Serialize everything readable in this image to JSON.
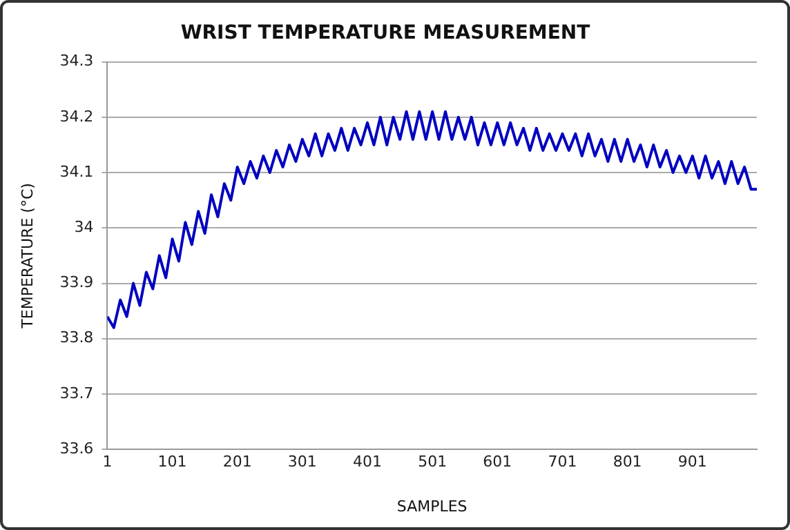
{
  "chart_data": {
    "type": "line",
    "title": "WRIST TEMPERATURE MEASUREMENT",
    "xlabel": "SAMPLES",
    "ylabel": "TEMPERATURE (°C)",
    "x": [
      1,
      11,
      21,
      31,
      41,
      51,
      61,
      71,
      81,
      91,
      101,
      111,
      121,
      131,
      141,
      151,
      161,
      171,
      181,
      191,
      201,
      211,
      221,
      231,
      241,
      251,
      261,
      271,
      281,
      291,
      301,
      311,
      321,
      331,
      341,
      351,
      361,
      371,
      381,
      391,
      401,
      411,
      421,
      431,
      441,
      451,
      461,
      471,
      481,
      491,
      501,
      511,
      521,
      531,
      541,
      551,
      561,
      571,
      581,
      591,
      601,
      611,
      621,
      631,
      641,
      651,
      661,
      671,
      681,
      691,
      701,
      711,
      721,
      731,
      741,
      751,
      761,
      771,
      781,
      791,
      801,
      811,
      821,
      831,
      841,
      851,
      861,
      871,
      881,
      891,
      901,
      911,
      921,
      931,
      941,
      951,
      961,
      971,
      981,
      991,
      1000
    ],
    "series": [
      {
        "color": "#0000c0",
        "values": [
          33.84,
          33.82,
          33.87,
          33.84,
          33.9,
          33.86,
          33.92,
          33.89,
          33.95,
          33.91,
          33.98,
          33.94,
          34.01,
          33.97,
          34.03,
          33.99,
          34.06,
          34.02,
          34.08,
          34.05,
          34.11,
          34.08,
          34.12,
          34.09,
          34.13,
          34.1,
          34.14,
          34.11,
          34.15,
          34.12,
          34.16,
          34.13,
          34.17,
          34.13,
          34.17,
          34.14,
          34.18,
          34.14,
          34.18,
          34.15,
          34.19,
          34.15,
          34.2,
          34.15,
          34.2,
          34.16,
          34.21,
          34.16,
          34.21,
          34.16,
          34.21,
          34.16,
          34.21,
          34.16,
          34.2,
          34.16,
          34.2,
          34.15,
          34.19,
          34.15,
          34.19,
          34.15,
          34.19,
          34.15,
          34.18,
          34.14,
          34.18,
          34.14,
          34.17,
          34.14,
          34.17,
          34.14,
          34.17,
          34.13,
          34.17,
          34.13,
          34.16,
          34.12,
          34.16,
          34.12,
          34.16,
          34.12,
          34.15,
          34.11,
          34.15,
          34.11,
          34.14,
          34.1,
          34.13,
          34.1,
          34.13,
          34.09,
          34.13,
          34.09,
          34.12,
          34.08,
          34.12,
          34.08,
          34.11,
          34.07,
          34.07
        ]
      }
    ],
    "xlim": [
      1,
      1000
    ],
    "xticks": [
      1,
      101,
      201,
      301,
      401,
      501,
      601,
      701,
      801,
      901
    ],
    "ylim": [
      33.6,
      34.3
    ],
    "yticks": [
      33.6,
      33.7,
      33.8,
      33.9,
      34,
      34.1,
      34.2,
      34.3
    ],
    "grid": "y",
    "legend": false,
    "marker": "none",
    "line_style": "solid"
  }
}
